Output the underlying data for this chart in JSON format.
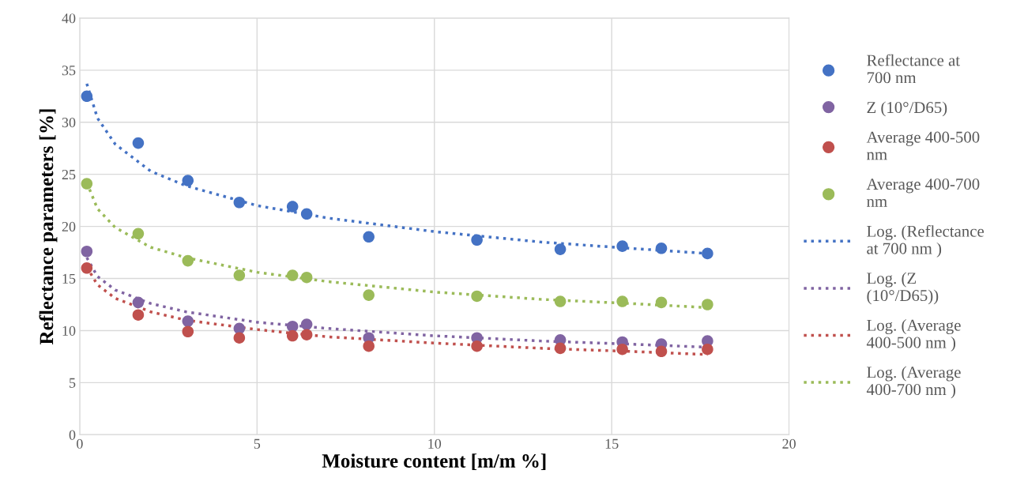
{
  "chart_data": {
    "type": "scatter",
    "xlabel": "Moisture content [m/m %]",
    "ylabel": "Reflectance parameters [%]",
    "xlim": [
      0,
      20
    ],
    "xticks": [
      0,
      5,
      10,
      15,
      20
    ],
    "ylim": [
      0,
      40
    ],
    "yticks": [
      0,
      5,
      10,
      15,
      20,
      25,
      30,
      35,
      40
    ],
    "grid": true,
    "legend": "right",
    "x": [
      0.2,
      1.65,
      3.05,
      4.5,
      6.0,
      6.4,
      8.15,
      11.2,
      13.55,
      15.3,
      16.4,
      17.7
    ],
    "series": [
      {
        "name": "Reflectance at 700 nm",
        "marker": "circle",
        "color": "#4472c4",
        "values": [
          32.5,
          28.0,
          24.4,
          22.3,
          21.9,
          21.2,
          19.0,
          18.7,
          17.8,
          18.1,
          17.9,
          17.4
        ]
      },
      {
        "name": "Z (10°/D65)",
        "marker": "circle",
        "color": "#8064a2",
        "values": [
          17.6,
          12.7,
          10.9,
          10.2,
          10.4,
          10.6,
          9.3,
          9.3,
          9.1,
          8.9,
          8.7,
          9.0
        ]
      },
      {
        "name": "Average 400-500 nm",
        "marker": "circle",
        "color": "#c0504d",
        "values": [
          16.0,
          11.5,
          9.9,
          9.3,
          9.5,
          9.6,
          8.5,
          8.5,
          8.3,
          8.2,
          8.0,
          8.2
        ]
      },
      {
        "name": "Average 400-700 nm",
        "marker": "circle",
        "color": "#9bbb59",
        "values": [
          24.1,
          19.3,
          16.7,
          15.3,
          15.3,
          15.1,
          13.4,
          13.3,
          12.8,
          12.8,
          12.7,
          12.5
        ]
      },
      {
        "name": "Log. (Reflectance at 700 nm )",
        "type": "line",
        "line_style": "dotted",
        "color": "#4472c4",
        "x": [
          0.2,
          0.5,
          1,
          2,
          3,
          5,
          7,
          10,
          13,
          15.5,
          17.7
        ],
        "values": [
          33.7,
          30.4,
          27.9,
          25.3,
          23.9,
          22.0,
          20.8,
          19.5,
          18.5,
          17.9,
          17.4
        ]
      },
      {
        "name": "Log. (Z (10°/D65))",
        "type": "line",
        "line_style": "dotted",
        "color": "#8064a2",
        "x": [
          0.2,
          0.5,
          1,
          2,
          3,
          5,
          7,
          10,
          13,
          15.5,
          17.7
        ],
        "values": [
          17.0,
          15.2,
          13.9,
          12.6,
          11.8,
          10.8,
          10.2,
          9.5,
          9.0,
          8.7,
          8.4
        ]
      },
      {
        "name": "Log. (Average 400-500 nm )",
        "type": "line",
        "line_style": "dotted",
        "color": "#c0504d",
        "x": [
          0.2,
          0.5,
          1,
          2,
          3,
          5,
          7,
          10,
          13,
          15.5,
          17.7
        ],
        "values": [
          16.1,
          14.4,
          13.1,
          11.8,
          11.0,
          10.1,
          9.4,
          8.8,
          8.3,
          8.0,
          7.7
        ]
      },
      {
        "name": "Log. (Average 400-700 nm )",
        "type": "line",
        "line_style": "dotted",
        "color": "#9bbb59",
        "x": [
          0.2,
          0.5,
          1,
          2,
          3,
          5,
          7,
          10,
          13,
          15.5,
          17.7
        ],
        "values": [
          24.2,
          21.7,
          19.9,
          18.0,
          17.0,
          15.6,
          14.7,
          13.7,
          13.0,
          12.6,
          12.2
        ]
      }
    ]
  }
}
